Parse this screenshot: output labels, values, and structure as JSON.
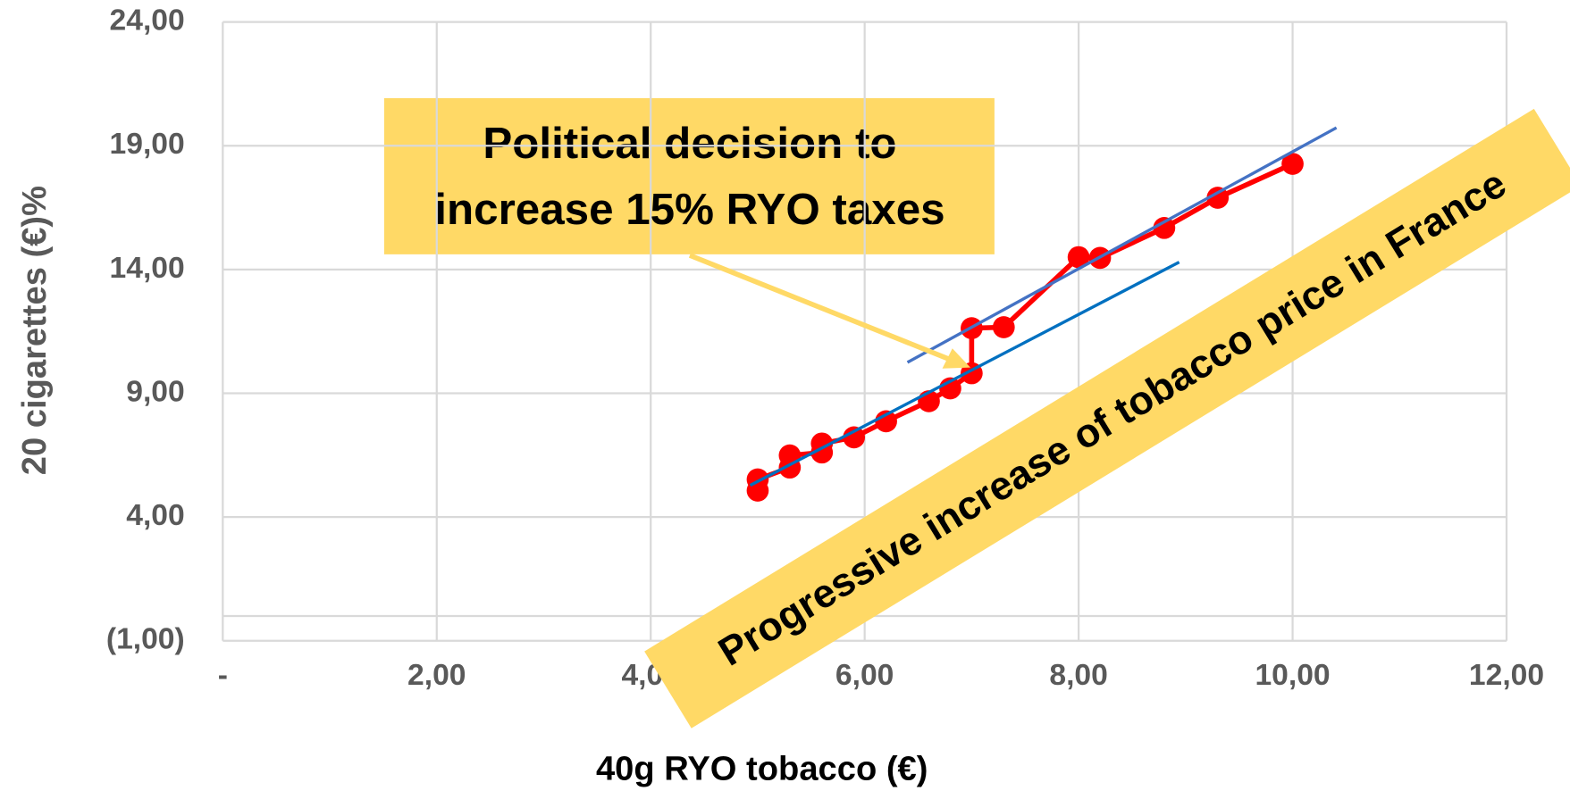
{
  "chart_data": {
    "type": "scatter",
    "xlabel": "40g RYO tobacco (€)",
    "ylabel": "20 cigarettes (€)%",
    "xlim": [
      0,
      12
    ],
    "ylim": [
      -1,
      24
    ],
    "xticks": [
      {
        "value": 0,
        "label": "-"
      },
      {
        "value": 2,
        "label": "2,00"
      },
      {
        "value": 4,
        "label": "4,00"
      },
      {
        "value": 6,
        "label": "6,00"
      },
      {
        "value": 8,
        "label": "8,00"
      },
      {
        "value": 10,
        "label": "10,00"
      },
      {
        "value": 12,
        "label": "12,00"
      }
    ],
    "yticks": [
      {
        "value": -1,
        "label": "(1,00)"
      },
      {
        "value": 4,
        "label": "4,00"
      },
      {
        "value": 9,
        "label": "9,00"
      },
      {
        "value": 14,
        "label": "14,00"
      },
      {
        "value": 19,
        "label": "19,00"
      },
      {
        "value": 24,
        "label": "24,00"
      }
    ],
    "grid": true,
    "series": [
      {
        "color": "#ff0000",
        "markers": true,
        "x": [
          5.0,
          5.0,
          5.3,
          5.3,
          5.6,
          5.6,
          5.9,
          6.2,
          6.6,
          6.8,
          7.0,
          7.0,
          7.3,
          8.0,
          8.2,
          8.8,
          9.3,
          10.0
        ],
        "values": [
          5.07,
          5.52,
          6.0,
          6.49,
          6.61,
          6.97,
          7.22,
          7.87,
          8.68,
          9.2,
          9.81,
          11.63,
          11.67,
          14.5,
          14.47,
          15.68,
          16.9,
          18.27
        ]
      },
      {
        "color": "#0070c0",
        "markers": false,
        "x": [
          4.93,
          8.94
        ],
        "values": [
          5.28,
          14.3
        ]
      },
      {
        "color": "#4472c4",
        "markers": false,
        "x": [
          6.4,
          10.41
        ],
        "values": [
          10.25,
          19.73
        ]
      }
    ],
    "annotations": [
      "Political decision to",
      "increase 15% RYO taxes",
      "Progressive increase of tobacco price in France"
    ]
  }
}
